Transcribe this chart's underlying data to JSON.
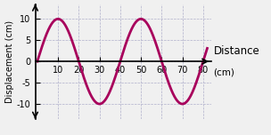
{
  "xlabel_line1": "Distance",
  "xlabel_line2": "(cm)",
  "ylabel": "Displacement (cm)",
  "xlim": [
    -1,
    84
  ],
  "ylim": [
    -13.5,
    13.5
  ],
  "xticks": [
    10,
    20,
    30,
    40,
    50,
    60,
    70,
    80
  ],
  "yticks": [
    -10,
    -5,
    0,
    5,
    10
  ],
  "amplitude": 10,
  "wavelength": 40,
  "x_start": 0,
  "x_end": 82,
  "wave_color": "#A8005C",
  "wave_linewidth": 2.0,
  "background_color": "#f0f0f0",
  "grid_color": "#b0b0cc",
  "tick_fontsize": 7,
  "ylabel_fontsize": 7,
  "xlabel_fontsize": 8.5
}
